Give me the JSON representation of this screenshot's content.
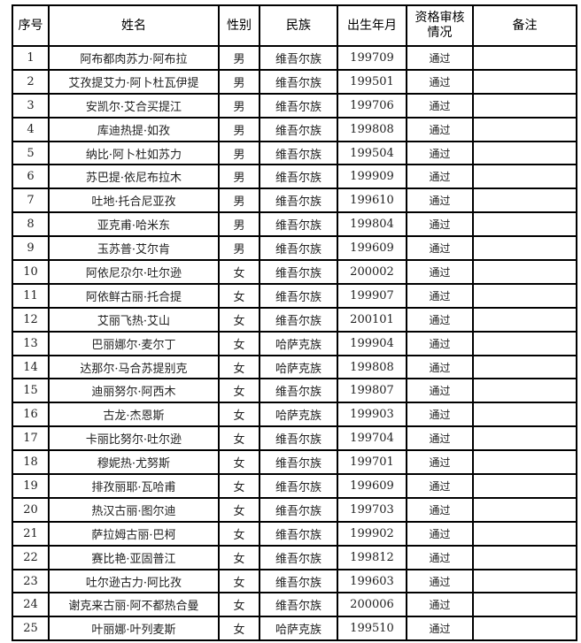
{
  "headers": [
    "序号",
    "姓名",
    "性别",
    "民族",
    "出生年月",
    "资格审核情况",
    "备注"
  ],
  "header_review_lines": [
    "资格审核",
    "情况"
  ],
  "rows": [
    {
      "no": "1",
      "name": "阿布都肉苏力·阿布拉",
      "gender": "男",
      "ethnic": "维吾尔族",
      "birth": "199709",
      "review": "通过",
      "note": ""
    },
    {
      "no": "2",
      "name": "艾孜提艾力·阿卜杜瓦伊提",
      "gender": "男",
      "ethnic": "维吾尔族",
      "birth": "199501",
      "review": "通过",
      "note": ""
    },
    {
      "no": "3",
      "name": "安凯尔·艾合买提江",
      "gender": "男",
      "ethnic": "维吾尔族",
      "birth": "199706",
      "review": "通过",
      "note": ""
    },
    {
      "no": "4",
      "name": "库迪热提·如孜",
      "gender": "男",
      "ethnic": "维吾尔族",
      "birth": "199808",
      "review": "通过",
      "note": ""
    },
    {
      "no": "5",
      "name": "纳比·阿卜杜如苏力",
      "gender": "男",
      "ethnic": "维吾尔族",
      "birth": "199504",
      "review": "通过",
      "note": ""
    },
    {
      "no": "6",
      "name": "苏巴提·依尼布拉木",
      "gender": "男",
      "ethnic": "维吾尔族",
      "birth": "199909",
      "review": "通过",
      "note": ""
    },
    {
      "no": "7",
      "name": "吐地·托合尼亚孜",
      "gender": "男",
      "ethnic": "维吾尔族",
      "birth": "199610",
      "review": "通过",
      "note": ""
    },
    {
      "no": "8",
      "name": "亚克甫·哈米东",
      "gender": "男",
      "ethnic": "维吾尔族",
      "birth": "199804",
      "review": "通过",
      "note": ""
    },
    {
      "no": "9",
      "name": "玉苏普·艾尔肯",
      "gender": "男",
      "ethnic": "维吾尔族",
      "birth": "199609",
      "review": "通过",
      "note": ""
    },
    {
      "no": "10",
      "name": "阿依尼尕尔·吐尔逊",
      "gender": "女",
      "ethnic": "维吾尔族",
      "birth": "200002",
      "review": "通过",
      "note": ""
    },
    {
      "no": "11",
      "name": "阿依鲜古丽·托合提",
      "gender": "女",
      "ethnic": "维吾尔族",
      "birth": "199907",
      "review": "通过",
      "note": ""
    },
    {
      "no": "12",
      "name": "艾丽飞热·艾山",
      "gender": "女",
      "ethnic": "维吾尔族",
      "birth": "200101",
      "review": "通过",
      "note": ""
    },
    {
      "no": "13",
      "name": "巴丽娜尔·麦尔丁",
      "gender": "女",
      "ethnic": "哈萨克族",
      "birth": "199904",
      "review": "通过",
      "note": ""
    },
    {
      "no": "14",
      "name": "达那尔·马合苏提别克",
      "gender": "女",
      "ethnic": "哈萨克族",
      "birth": "199808",
      "review": "通过",
      "note": ""
    },
    {
      "no": "15",
      "name": "迪丽努尔·阿西木",
      "gender": "女",
      "ethnic": "维吾尔族",
      "birth": "199807",
      "review": "通过",
      "note": ""
    },
    {
      "no": "16",
      "name": "古龙·杰恩斯",
      "gender": "女",
      "ethnic": "哈萨克族",
      "birth": "199903",
      "review": "通过",
      "note": ""
    },
    {
      "no": "17",
      "name": "卡丽比努尔·吐尔逊",
      "gender": "女",
      "ethnic": "维吾尔族",
      "birth": "199704",
      "review": "通过",
      "note": ""
    },
    {
      "no": "18",
      "name": "穆妮热·尤努斯",
      "gender": "女",
      "ethnic": "维吾尔族",
      "birth": "199701",
      "review": "通过",
      "note": ""
    },
    {
      "no": "19",
      "name": "排孜丽耶·瓦哈甫",
      "gender": "女",
      "ethnic": "维吾尔族",
      "birth": "199609",
      "review": "通过",
      "note": ""
    },
    {
      "no": "20",
      "name": "热汉古丽·图尔迪",
      "gender": "女",
      "ethnic": "维吾尔族",
      "birth": "199703",
      "review": "通过",
      "note": ""
    },
    {
      "no": "21",
      "name": "萨拉姆古丽·巴柯",
      "gender": "女",
      "ethnic": "维吾尔族",
      "birth": "199902",
      "review": "通过",
      "note": ""
    },
    {
      "no": "22",
      "name": "赛比艳·亚固普江",
      "gender": "女",
      "ethnic": "维吾尔族",
      "birth": "199812",
      "review": "通过",
      "note": ""
    },
    {
      "no": "23",
      "name": "吐尔逊古力·阿比孜",
      "gender": "女",
      "ethnic": "维吾尔族",
      "birth": "199603",
      "review": "通过",
      "note": ""
    },
    {
      "no": "24",
      "name": "谢克来古丽·阿不都热合曼",
      "gender": "女",
      "ethnic": "维吾尔族",
      "birth": "200006",
      "review": "通过",
      "note": ""
    },
    {
      "no": "25",
      "name": "叶丽娜·叶列麦斯",
      "gender": "女",
      "ethnic": "哈萨克族",
      "birth": "199510",
      "review": "通过",
      "note": ""
    }
  ]
}
